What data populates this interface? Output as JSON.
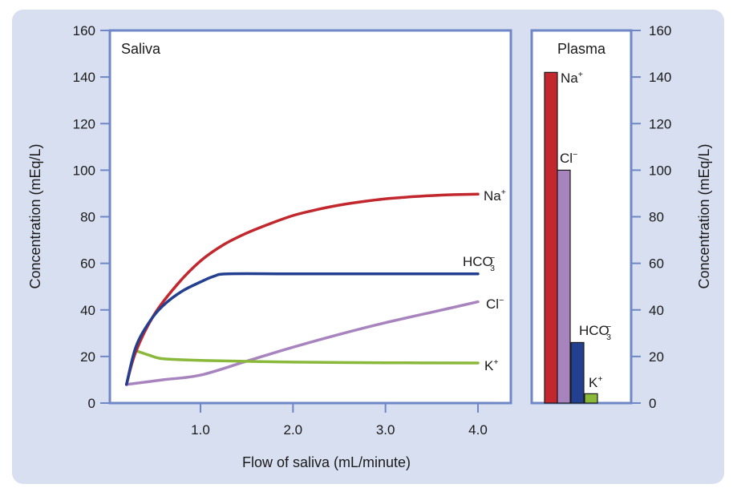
{
  "chart_data": [
    {
      "type": "line",
      "title": "Saliva",
      "xlabel": "Flow of saliva (mL/minute)",
      "ylabel": "Concentration (mEq/L)",
      "xlim": [
        0.2,
        4.0
      ],
      "ylim": [
        0,
        160
      ],
      "xticks": [
        "1.0",
        "2.0",
        "3.0",
        "4.0"
      ],
      "xtick_values": [
        1.0,
        2.0,
        3.0,
        4.0
      ],
      "yticks": [
        "0",
        "20",
        "40",
        "60",
        "80",
        "100",
        "120",
        "140",
        "160"
      ],
      "ytick_values": [
        0,
        20,
        40,
        60,
        80,
        100,
        120,
        140,
        160
      ],
      "grid": false,
      "series": [
        {
          "name": "Na⁺",
          "color": "#c1272d",
          "x": [
            0.2,
            0.3,
            0.5,
            0.75,
            1.0,
            1.25,
            1.5,
            1.75,
            2.0,
            2.25,
            2.5,
            2.75,
            3.0,
            3.25,
            3.5,
            3.75,
            4.0
          ],
          "y": [
            8,
            22,
            38,
            51,
            61,
            68,
            73,
            77,
            80.5,
            83,
            85,
            86.5,
            87.7,
            88.5,
            89.1,
            89.5,
            89.7
          ]
        },
        {
          "name": "HCO₃⁻",
          "color": "#233f8f",
          "x": [
            0.2,
            0.3,
            0.45,
            0.6,
            0.8,
            1.0,
            1.15,
            1.3,
            2.0,
            3.0,
            4.0
          ],
          "y": [
            8,
            24,
            35,
            42,
            48,
            52,
            54.5,
            55.5,
            55.5,
            55.5,
            55.5
          ]
        },
        {
          "name": "Cl⁻",
          "color": "#a784bd",
          "x": [
            0.2,
            0.6,
            1.0,
            1.5,
            2.0,
            2.5,
            3.0,
            3.5,
            4.0
          ],
          "y": [
            8,
            10,
            12,
            18,
            24,
            29.5,
            34.5,
            39,
            43.5
          ]
        },
        {
          "name": "K⁺",
          "color": "#8ab83a",
          "x": [
            0.3,
            0.45,
            0.6,
            1.0,
            2.0,
            3.0,
            4.0
          ],
          "y": [
            22.5,
            20.5,
            19,
            18.3,
            17.6,
            17.3,
            17.2
          ]
        }
      ],
      "labels": {
        "na": "Na",
        "na_sup": "+",
        "hco3_main": "HCO",
        "hco3_sub": "3",
        "hco3_sup": "−",
        "cl": "Cl",
        "cl_sup": "−",
        "k": "K",
        "k_sup": "+"
      }
    },
    {
      "type": "bar",
      "title": "Plasma",
      "ylabel": "Concentration (mEq/L)",
      "ylim": [
        0,
        160
      ],
      "yticks": [
        "0",
        "20",
        "40",
        "60",
        "80",
        "100",
        "120",
        "140",
        "160"
      ],
      "categories": [
        "Na⁺",
        "Cl⁻",
        "HCO₃⁻",
        "K⁺"
      ],
      "values": [
        142,
        100,
        26,
        4
      ],
      "colors": [
        "#c1272d",
        "#a784bd",
        "#233f8f",
        "#8ab83a"
      ]
    }
  ]
}
